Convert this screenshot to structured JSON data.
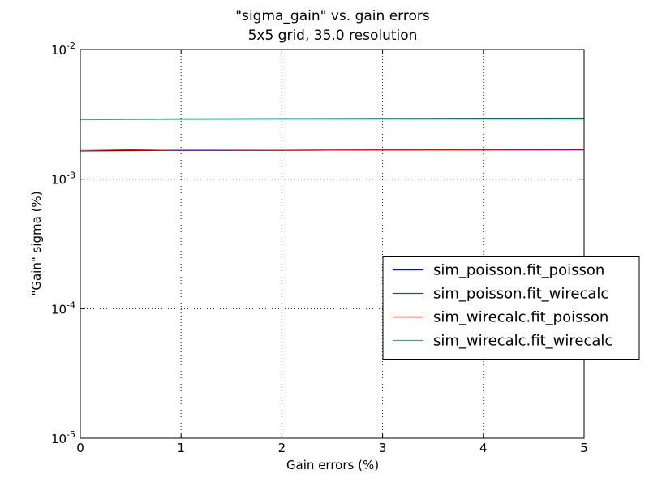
{
  "chart_data": {
    "type": "line",
    "title": "\"sigma_gain\" vs. gain errors",
    "subtitle": "5x5 grid, 35.0 resolution",
    "x_label": "Gain errors (%)",
    "y_label": "\"Gain\" sigma (%)",
    "x": [
      0,
      1,
      2,
      3,
      4,
      5
    ],
    "series": [
      {
        "name": "sim_poisson.fit_poisson",
        "color": "#0000ff",
        "values": [
          0.00165,
          0.00167,
          0.00167,
          0.00168,
          0.00168,
          0.00168
        ]
      },
      {
        "name": "sim_poisson.fit_wirecalc",
        "color": "#008000",
        "values": [
          0.00288,
          0.00292,
          0.00293,
          0.00294,
          0.00295,
          0.00296
        ]
      },
      {
        "name": "sim_wirecalc.fit_poisson",
        "color": "#ff0000",
        "values": [
          0.00171,
          0.00166,
          0.00167,
          0.00168,
          0.00169,
          0.0017
        ]
      },
      {
        "name": "sim_wirecalc.fit_wirecalc",
        "color": "#00bfbf",
        "values": [
          0.00287,
          0.00289,
          0.0029,
          0.0029,
          0.0029,
          0.00291
        ]
      }
    ],
    "xlim": [
      0,
      5
    ],
    "xticks": [
      0,
      1,
      2,
      3,
      4,
      5
    ],
    "ylim": [
      1e-05,
      0.01
    ],
    "yticks": [
      {
        "value": 1e-05,
        "label": "10^-5"
      },
      {
        "value": 0.0001,
        "label": "10^-4"
      },
      {
        "value": 0.001,
        "label": "10^-3"
      },
      {
        "value": 0.01,
        "label": "10^-2"
      }
    ],
    "y_scale": "log",
    "grid": true,
    "legend_loc": "center right"
  }
}
